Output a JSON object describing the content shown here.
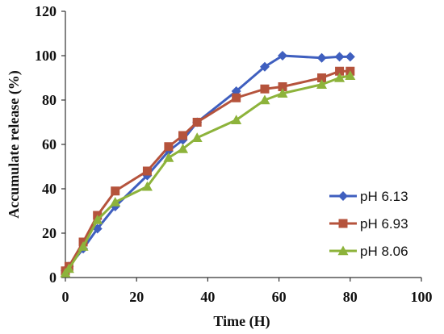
{
  "chart_data": {
    "type": "line",
    "xlabel": "Time (H)",
    "ylabel": "Accumulate release (%)",
    "xlim": [
      0,
      100
    ],
    "ylim": [
      0,
      120
    ],
    "xticks": [
      "0",
      "20",
      "40",
      "60",
      "80",
      "100"
    ],
    "yticks": [
      "0",
      "20",
      "40",
      "60",
      "80",
      "100",
      "120"
    ],
    "grid": false,
    "legend_position": "right",
    "series": [
      {
        "name": "pH 6.13",
        "color": "#3f5fbf",
        "marker": "diamond",
        "points": [
          [
            0,
            3
          ],
          [
            1,
            5
          ],
          [
            5,
            13
          ],
          [
            9,
            22
          ],
          [
            14,
            32
          ],
          [
            23,
            46
          ],
          [
            29,
            57
          ],
          [
            33,
            62
          ],
          [
            37,
            70
          ],
          [
            48,
            84
          ],
          [
            56,
            95
          ],
          [
            61,
            100
          ],
          [
            72,
            99
          ],
          [
            77,
            99.5
          ],
          [
            80,
            99.5
          ]
        ]
      },
      {
        "name": "pH 6.93",
        "color": "#b5533c",
        "marker": "square",
        "points": [
          [
            0,
            3
          ],
          [
            1,
            5
          ],
          [
            5,
            16
          ],
          [
            9,
            28
          ],
          [
            14,
            39
          ],
          [
            23,
            48
          ],
          [
            29,
            59
          ],
          [
            33,
            64
          ],
          [
            37,
            70
          ],
          [
            48,
            81
          ],
          [
            56,
            85
          ],
          [
            61,
            86
          ],
          [
            72,
            90
          ],
          [
            77,
            93
          ],
          [
            80,
            93
          ]
        ]
      },
      {
        "name": "pH 8.06",
        "color": "#8db33b",
        "marker": "triangle",
        "points": [
          [
            0,
            2
          ],
          [
            1,
            4
          ],
          [
            5,
            14
          ],
          [
            9,
            26
          ],
          [
            14,
            34
          ],
          [
            23,
            41
          ],
          [
            29,
            54
          ],
          [
            33,
            58
          ],
          [
            37,
            63
          ],
          [
            48,
            71
          ],
          [
            56,
            80
          ],
          [
            61,
            83
          ],
          [
            72,
            87
          ],
          [
            77,
            90
          ],
          [
            80,
            91
          ]
        ]
      }
    ]
  }
}
